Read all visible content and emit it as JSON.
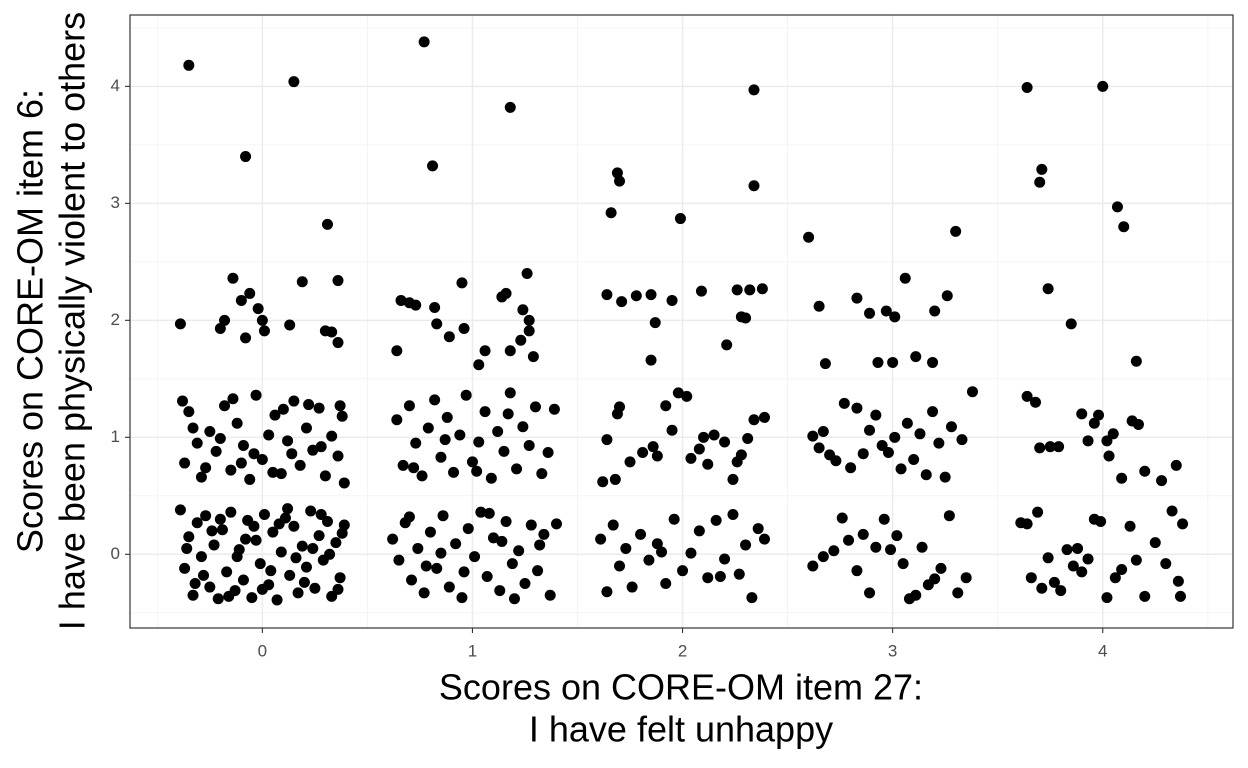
{
  "chart_data": {
    "type": "scatter",
    "color": "#000000",
    "x_label": [
      "Scores on CORE-OM item 27:",
      "I have felt unhappy"
    ],
    "y_label": [
      "Scores on CORE-OM item 6:",
      "I have been physically violent to others"
    ],
    "xlim": [
      -0.63,
      4.62
    ],
    "ylim": [
      -0.63,
      4.61
    ],
    "xticks": [
      0,
      1,
      2,
      3,
      4
    ],
    "yticks": [
      0,
      1,
      2,
      3,
      4
    ],
    "xminor": [
      -0.5,
      0.5,
      1.5,
      2.5,
      3.5,
      4.5
    ],
    "yminor": [
      -0.5,
      0.5,
      1.5,
      2.5,
      3.5,
      4.5
    ],
    "grid": true,
    "x": [
      -0.35,
      0.15,
      -0.08,
      0.31,
      -0.39,
      -0.14,
      0.19,
      0.36,
      -0.1,
      -0.06,
      -0.2,
      -0.18,
      -0.02,
      0,
      -0.08,
      0.13,
      0.01,
      0.3,
      0.33,
      0.36,
      0.77,
      0.81,
      1.18,
      0.64,
      0.66,
      0.7,
      0.73,
      0.82,
      0.83,
      0.89,
      0.95,
      0.96,
      1.06,
      1.14,
      1.16,
      1.26,
      1.18,
      1.23,
      1.24,
      1.27,
      1.27,
      1.29,
      1.03,
      1.66,
      1.69,
      1.7,
      1.99,
      2.34,
      2.34,
      1.64,
      1.71,
      1.78,
      1.85,
      1.87,
      1.85,
      1.95,
      2.09,
      2.21,
      2.26,
      2.28,
      2.3,
      2.32,
      2.38,
      2.6,
      3.3,
      2.65,
      2.68,
      2.83,
      2.89,
      2.97,
      3.01,
      2.93,
      3.0,
      3.06,
      3.11,
      3.19,
      3.2,
      3.26,
      3.64,
      4.0,
      3.71,
      3.7,
      4.07,
      4.1,
      3.74,
      3.85,
      4.16,
      -0.38,
      -0.35,
      -0.31,
      -0.37,
      -0.29,
      -0.25,
      -0.22,
      -0.18,
      -0.15,
      -0.12,
      -0.09,
      -0.06,
      -0.03,
      0,
      0.03,
      0.06,
      0.09,
      0.12,
      0.15,
      0.18,
      0.21,
      0.24,
      0.27,
      0.3,
      0.33,
      0.36,
      0.38,
      0.39,
      -0.33,
      -0.27,
      -0.2,
      -0.14,
      -0.04,
      0.05,
      0.14,
      0.22,
      0.28,
      0.37,
      -0.1,
      0.1,
      -0.39,
      -0.37,
      -0.35,
      -0.33,
      -0.31,
      -0.29,
      -0.27,
      -0.25,
      -0.23,
      -0.21,
      -0.19,
      -0.17,
      -0.15,
      -0.13,
      -0.11,
      -0.09,
      -0.07,
      -0.05,
      -0.03,
      -0.01,
      0.01,
      0.03,
      0.05,
      0.07,
      0.09,
      0.11,
      0.13,
      0.15,
      0.17,
      0.19,
      0.21,
      0.23,
      0.25,
      0.27,
      0.29,
      0.31,
      0.33,
      0.35,
      0.37,
      0.39,
      -0.36,
      -0.28,
      -0.2,
      -0.12,
      -0.04,
      0.04,
      0.12,
      0.2,
      0.28,
      0.36,
      -0.32,
      -0.24,
      -0.16,
      -0.08,
      0,
      0.08,
      0.16,
      0.24,
      0.32,
      0.38,
      0.64,
      0.67,
      0.7,
      0.73,
      0.76,
      0.79,
      0.82,
      0.85,
      0.88,
      0.91,
      0.94,
      0.97,
      1.0,
      1.03,
      1.06,
      1.09,
      1.12,
      1.15,
      1.18,
      1.21,
      1.24,
      1.27,
      1.3,
      1.33,
      1.36,
      1.39,
      0.72,
      0.87,
      1.02,
      1.17,
      0.62,
      0.65,
      0.68,
      0.71,
      0.74,
      0.77,
      0.8,
      0.83,
      0.86,
      0.89,
      0.92,
      0.95,
      0.98,
      1.01,
      1.04,
      1.07,
      1.1,
      1.13,
      1.16,
      1.19,
      1.22,
      1.25,
      1.28,
      1.31,
      1.34,
      1.37,
      1.4,
      0.7,
      0.85,
      0.96,
      1.08,
      1.2,
      1.32,
      0.78,
      1.14,
      1.62,
      1.68,
      1.69,
      1.7,
      1.75,
      1.81,
      1.86,
      1.88,
      1.92,
      1.95,
      1.98,
      2.02,
      2.04,
      2.08,
      2.12,
      2.15,
      2.2,
      2.24,
      2.26,
      2.28,
      2.31,
      2.34,
      2.39,
      1.64,
      2.1,
      1.61,
      1.64,
      1.67,
      1.7,
      1.73,
      1.76,
      1.8,
      1.84,
      1.88,
      1.92,
      1.96,
      2.0,
      2.04,
      2.08,
      2.12,
      2.16,
      2.2,
      2.24,
      2.27,
      2.3,
      2.33,
      2.36,
      2.39,
      1.9,
      2.18,
      2.62,
      2.65,
      2.67,
      2.7,
      2.73,
      2.77,
      2.8,
      2.83,
      2.86,
      2.89,
      2.92,
      2.95,
      2.98,
      3.01,
      3.04,
      3.07,
      3.1,
      3.13,
      3.16,
      3.19,
      3.22,
      3.25,
      3.28,
      3.33,
      3.38,
      2.62,
      2.67,
      2.72,
      2.76,
      2.79,
      2.83,
      2.86,
      2.89,
      2.92,
      2.96,
      2.99,
      3.02,
      3.05,
      3.08,
      3.11,
      3.14,
      3.17,
      3.2,
      3.23,
      3.27,
      3.31,
      3.35,
      3.64,
      3.68,
      3.7,
      3.75,
      3.79,
      3.9,
      3.93,
      3.96,
      3.98,
      4.03,
      4.05,
      4.09,
      4.14,
      4.17,
      4.2,
      4.28,
      4.35,
      4.02,
      3.61,
      3.64,
      3.66,
      3.69,
      3.71,
      3.74,
      3.77,
      3.8,
      3.83,
      3.86,
      3.88,
      3.9,
      3.93,
      3.96,
      3.99,
      4.02,
      4.06,
      4.09,
      4.13,
      4.16,
      4.2,
      4.25,
      4.3,
      4.33,
      4.37,
      4.38,
      4.36
    ],
    "values": [
      4.18,
      4.04,
      3.4,
      2.82,
      1.97,
      2.36,
      2.33,
      2.34,
      2.17,
      2.23,
      1.93,
      2.0,
      2.1,
      2.0,
      1.85,
      1.96,
      1.91,
      1.91,
      1.9,
      1.81,
      4.38,
      3.32,
      3.82,
      1.74,
      2.17,
      2.15,
      2.13,
      2.11,
      1.97,
      1.86,
      2.32,
      1.93,
      1.74,
      2.2,
      2.23,
      2.4,
      1.74,
      1.83,
      2.09,
      2.0,
      1.91,
      1.69,
      1.62,
      2.92,
      3.26,
      3.19,
      2.87,
      3.97,
      3.15,
      2.22,
      2.16,
      2.21,
      2.22,
      1.98,
      1.66,
      2.17,
      2.25,
      1.79,
      2.26,
      2.03,
      2.02,
      2.26,
      2.27,
      2.71,
      2.76,
      2.12,
      1.63,
      2.19,
      2.06,
      2.08,
      2.03,
      1.64,
      1.64,
      2.36,
      1.69,
      1.64,
      2.08,
      2.21,
      3.99,
      4.0,
      3.29,
      3.18,
      2.97,
      2.8,
      2.27,
      1.97,
      1.65,
      1.31,
      1.22,
      0.95,
      0.78,
      0.66,
      1.05,
      0.88,
      1.27,
      0.72,
      1.12,
      0.93,
      0.64,
      1.36,
      0.81,
      1.02,
      1.19,
      0.69,
      0.97,
      1.31,
      0.76,
      1.08,
      0.89,
      1.25,
      0.67,
      1.01,
      0.84,
      1.18,
      0.61,
      1.08,
      0.74,
      0.99,
      1.33,
      0.86,
      0.7,
      0.86,
      1.28,
      0.92,
      1.27,
      0.78,
      1.24,
      0.38,
      -0.12,
      0.15,
      -0.35,
      0.27,
      -0.02,
      0.33,
      -0.28,
      0.08,
      -0.38,
      0.21,
      -0.15,
      0.36,
      -0.31,
      0.04,
      -0.22,
      0.29,
      -0.37,
      0.12,
      -0.08,
      0.34,
      -0.26,
      0.19,
      -0.39,
      0.02,
      0.31,
      -0.18,
      0.24,
      -0.33,
      0.07,
      -0.11,
      0.37,
      -0.29,
      0.16,
      -0.05,
      0.28,
      -0.36,
      0.1,
      -0.2,
      0.25,
      0.05,
      -0.18,
      0.3,
      -0.02,
      0.24,
      -0.14,
      0.39,
      -0.24,
      0.34,
      -0.3,
      -0.25,
      0.2,
      -0.36,
      0.13,
      -0.3,
      0.26,
      -0.03,
      0.05,
      0,
      0.18,
      1.15,
      0.76,
      1.27,
      0.95,
      0.67,
      1.08,
      1.32,
      0.83,
      1.17,
      0.7,
      1.02,
      1.36,
      0.79,
      0.96,
      1.22,
      0.65,
      1.05,
      0.88,
      1.38,
      0.73,
      1.09,
      0.93,
      1.26,
      0.69,
      0.87,
      1.24,
      0.74,
      0.98,
      0.71,
      1.2,
      0.13,
      -0.05,
      0.27,
      -0.22,
      0.05,
      -0.33,
      0.19,
      -0.12,
      0.33,
      -0.28,
      0.09,
      -0.37,
      0.22,
      -0.02,
      0.36,
      -0.19,
      0.14,
      -0.31,
      0.28,
      -0.08,
      0.03,
      -0.25,
      0.25,
      -0.14,
      0.17,
      -0.35,
      0.26,
      0.32,
      0.01,
      -0.15,
      0.35,
      -0.38,
      0.08,
      -0.1,
      0.11,
      0.62,
      0.64,
      1.2,
      1.26,
      0.79,
      0.87,
      0.92,
      0.84,
      1.27,
      1.06,
      1.38,
      1.35,
      0.82,
      0.9,
      0.77,
      1.02,
      0.96,
      0.64,
      0.79,
      0.85,
      0.99,
      1.15,
      1.17,
      0.98,
      1.0,
      0.13,
      -0.32,
      0.25,
      -0.1,
      0.05,
      -0.28,
      0.17,
      -0.05,
      0.09,
      -0.25,
      0.3,
      -0.14,
      0.01,
      0.2,
      -0.2,
      0.29,
      -0.04,
      0.34,
      -0.17,
      0.08,
      -0.37,
      0.22,
      0.13,
      0.02,
      -0.19,
      1.01,
      0.91,
      1.05,
      0.85,
      0.8,
      1.29,
      0.74,
      1.25,
      0.86,
      1.06,
      1.19,
      0.93,
      0.87,
      1.0,
      0.73,
      1.12,
      0.81,
      1.03,
      0.68,
      1.22,
      0.95,
      0.66,
      1.09,
      0.98,
      1.39,
      -0.1,
      -0.02,
      0.03,
      0.31,
      0.12,
      -0.14,
      0.17,
      -0.33,
      0.06,
      0.3,
      0.04,
      0.16,
      -0.08,
      -0.38,
      -0.35,
      0.06,
      -0.26,
      -0.21,
      -0.12,
      0.33,
      -0.33,
      -0.2,
      1.35,
      1.3,
      0.91,
      0.92,
      0.92,
      1.2,
      0.97,
      1.12,
      1.19,
      0.84,
      1.03,
      0.65,
      1.14,
      1.11,
      0.71,
      0.63,
      0.76,
      0.97,
      0.27,
      0.26,
      -0.2,
      0.36,
      -0.29,
      -0.03,
      -0.24,
      -0.31,
      0.04,
      -0.1,
      0.05,
      -0.15,
      -0.04,
      0.3,
      0.28,
      -0.37,
      -0.2,
      -0.13,
      0.24,
      -0.05,
      -0.36,
      0.1,
      -0.08,
      0.37,
      -0.36,
      0.26,
      -0.23
    ]
  }
}
